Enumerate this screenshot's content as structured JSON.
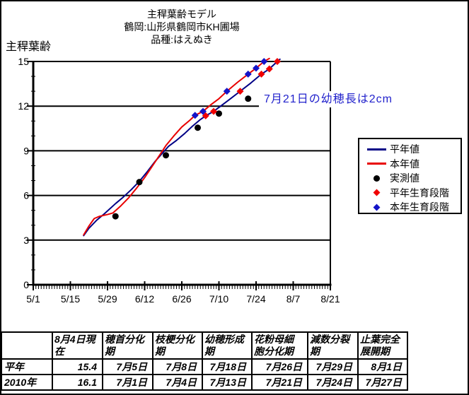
{
  "chart": {
    "title_lines": [
      "主稈葉齢モデル",
      "鶴岡:山形県鶴岡市KH圃場",
      "品種:はえぬき"
    ],
    "y_axis_title": "主稈葉齢",
    "annotation": {
      "text": "7月21日の幼穂長は2cm",
      "color": "#2222cc"
    },
    "legend": [
      {
        "label": "平年値",
        "marker": "line",
        "color": "#000086"
      },
      {
        "label": "本年値",
        "marker": "line",
        "color": "#e80000"
      },
      {
        "label": "実測値",
        "marker": "circle",
        "color": "#000000"
      },
      {
        "label": "平年生育段階",
        "marker": "diamond",
        "color": "#f00000"
      },
      {
        "label": "本年生育段階",
        "marker": "diamond",
        "color": "#1414c8"
      }
    ]
  },
  "chart_data": {
    "type": "line",
    "title": "主稈葉齢モデル 鶴岡:山形県鶴岡市KH圃場 品種:はえぬき",
    "ylabel": "主稈葉齢",
    "ylim": [
      0,
      15
    ],
    "y_ticks": [
      0,
      3,
      6,
      9,
      12,
      15
    ],
    "x_tick_labels": [
      "5/1",
      "5/15",
      "5/29",
      "6/12",
      "6/26",
      "7/10",
      "7/24",
      "8/7",
      "8/21"
    ],
    "grid": true,
    "legend_position": "right",
    "series": [
      {
        "name": "平年値",
        "type": "line",
        "color": "#000086",
        "points": [
          [
            "5/20",
            3.3
          ],
          [
            "5/22",
            3.8
          ],
          [
            "5/25",
            4.35
          ],
          [
            "5/28",
            4.8
          ],
          [
            "6/1",
            5.45
          ],
          [
            "6/4",
            5.9
          ],
          [
            "6/7",
            6.4
          ],
          [
            "6/10",
            6.95
          ],
          [
            "6/13",
            7.6
          ],
          [
            "6/16",
            8.3
          ],
          [
            "6/19",
            8.9
          ],
          [
            "6/21",
            9.3
          ],
          [
            "6/24",
            9.7
          ],
          [
            "6/27",
            10.15
          ],
          [
            "6/30",
            10.65
          ],
          [
            "7/3",
            11.1
          ],
          [
            "7/5",
            11.35
          ],
          [
            "7/8",
            11.65
          ],
          [
            "7/11",
            12.05
          ],
          [
            "7/14",
            12.45
          ],
          [
            "7/18",
            13.0
          ],
          [
            "7/22",
            13.55
          ],
          [
            "7/26",
            14.15
          ],
          [
            "7/29",
            14.5
          ],
          [
            "8/1",
            15.0
          ],
          [
            "8/2",
            15.15
          ]
        ]
      },
      {
        "name": "本年値",
        "type": "line",
        "color": "#e80000",
        "points": [
          [
            "5/20",
            3.35
          ],
          [
            "5/22",
            3.95
          ],
          [
            "5/24",
            4.45
          ],
          [
            "5/26",
            4.6
          ],
          [
            "5/29",
            4.72
          ],
          [
            "5/31",
            4.82
          ],
          [
            "6/3",
            5.3
          ],
          [
            "6/6",
            5.85
          ],
          [
            "6/9",
            6.5
          ],
          [
            "6/12",
            7.2
          ],
          [
            "6/15",
            8.0
          ],
          [
            "6/18",
            8.8
          ],
          [
            "6/20",
            9.35
          ],
          [
            "6/23",
            10.0
          ],
          [
            "6/26",
            10.6
          ],
          [
            "6/29",
            11.05
          ],
          [
            "7/1",
            11.38
          ],
          [
            "7/4",
            11.65
          ],
          [
            "7/7",
            12.1
          ],
          [
            "7/10",
            12.5
          ],
          [
            "7/13",
            13.0
          ],
          [
            "7/17",
            13.6
          ],
          [
            "7/21",
            14.15
          ],
          [
            "7/24",
            14.55
          ],
          [
            "7/27",
            15.0
          ],
          [
            "7/29",
            15.2
          ]
        ]
      },
      {
        "name": "実測値",
        "type": "scatter",
        "marker": "circle",
        "color": "#000000",
        "points": [
          [
            "6/1",
            4.6
          ],
          [
            "6/10",
            6.9
          ],
          [
            "6/20",
            8.7
          ],
          [
            "7/2",
            10.55
          ],
          [
            "7/10",
            11.5
          ],
          [
            "7/21",
            12.5
          ]
        ]
      },
      {
        "name": "平年生育段階",
        "type": "scatter",
        "marker": "diamond",
        "color": "#f00000",
        "points": [
          [
            "7/5",
            11.35
          ],
          [
            "7/8",
            11.65
          ],
          [
            "7/18",
            13.0
          ],
          [
            "7/26",
            14.15
          ],
          [
            "7/29",
            14.5
          ],
          [
            "8/1",
            15.0
          ]
        ]
      },
      {
        "name": "本年生育段階",
        "type": "scatter",
        "marker": "diamond",
        "color": "#1414c8",
        "points": [
          [
            "7/1",
            11.38
          ],
          [
            "7/4",
            11.65
          ],
          [
            "7/13",
            13.0
          ],
          [
            "7/21",
            14.15
          ],
          [
            "7/24",
            14.55
          ],
          [
            "7/27",
            15.0
          ]
        ]
      }
    ]
  },
  "table": {
    "columns": [
      "",
      "8月4日現\n在",
      "穂首分化\n期",
      "枝梗分化\n期",
      "幼穂形成\n期",
      "花粉母細\n胞分化期",
      "減数分裂\n期",
      "止葉完全\n展開期"
    ],
    "rows": [
      {
        "label": "平年",
        "values": [
          "15.4",
          "7月5日",
          "7月8日",
          "7月18日",
          "7月26日",
          "7月29日",
          "8月1日"
        ]
      },
      {
        "label": "2010年",
        "values": [
          "16.1",
          "7月1日",
          "7月4日",
          "7月13日",
          "7月21日",
          "7月24日",
          "7月27日"
        ]
      }
    ]
  }
}
